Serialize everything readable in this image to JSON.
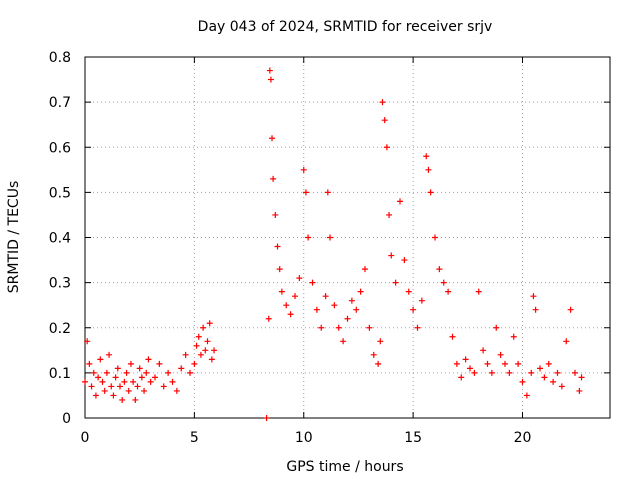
{
  "chart_data": {
    "type": "scatter",
    "title": "Day 043 of 2024, SRMTID for receiver srjv",
    "xlabel": "GPS time / hours",
    "ylabel": "SRMTID / TECUs",
    "xlim": [
      0,
      24
    ],
    "ylim": [
      0,
      0.8
    ],
    "xticks": [
      0,
      5,
      10,
      15,
      20
    ],
    "yticks": [
      0,
      0.1,
      0.2,
      0.3,
      0.4,
      0.5,
      0.6,
      0.7,
      0.8
    ],
    "grid": true,
    "marker": "+",
    "series": [
      {
        "name": "SRMTID",
        "color": "#ff0000",
        "points": [
          [
            0.0,
            0.08
          ],
          [
            0.1,
            0.17
          ],
          [
            0.2,
            0.12
          ],
          [
            0.3,
            0.07
          ],
          [
            0.4,
            0.1
          ],
          [
            0.5,
            0.05
          ],
          [
            0.6,
            0.09
          ],
          [
            0.7,
            0.13
          ],
          [
            0.8,
            0.08
          ],
          [
            0.9,
            0.06
          ],
          [
            1.0,
            0.1
          ],
          [
            1.1,
            0.14
          ],
          [
            1.2,
            0.07
          ],
          [
            1.3,
            0.05
          ],
          [
            1.4,
            0.09
          ],
          [
            1.5,
            0.11
          ],
          [
            1.6,
            0.07
          ],
          [
            1.7,
            0.04
          ],
          [
            1.8,
            0.08
          ],
          [
            1.9,
            0.1
          ],
          [
            2.0,
            0.06
          ],
          [
            2.1,
            0.12
          ],
          [
            2.2,
            0.08
          ],
          [
            2.3,
            0.04
          ],
          [
            2.4,
            0.07
          ],
          [
            2.5,
            0.11
          ],
          [
            2.6,
            0.09
          ],
          [
            2.7,
            0.06
          ],
          [
            2.8,
            0.1
          ],
          [
            2.9,
            0.13
          ],
          [
            3.0,
            0.08
          ],
          [
            3.2,
            0.09
          ],
          [
            3.4,
            0.12
          ],
          [
            3.6,
            0.07
          ],
          [
            3.8,
            0.1
          ],
          [
            4.0,
            0.08
          ],
          [
            4.2,
            0.06
          ],
          [
            4.4,
            0.11
          ],
          [
            4.6,
            0.14
          ],
          [
            4.8,
            0.1
          ],
          [
            5.0,
            0.12
          ],
          [
            5.1,
            0.16
          ],
          [
            5.2,
            0.18
          ],
          [
            5.3,
            0.14
          ],
          [
            5.4,
            0.2
          ],
          [
            5.5,
            0.15
          ],
          [
            5.6,
            0.17
          ],
          [
            5.7,
            0.21
          ],
          [
            5.8,
            0.13
          ],
          [
            5.9,
            0.15
          ],
          [
            8.3,
            0.0
          ],
          [
            8.4,
            0.22
          ],
          [
            8.45,
            0.77
          ],
          [
            8.5,
            0.75
          ],
          [
            8.55,
            0.62
          ],
          [
            8.6,
            0.53
          ],
          [
            8.7,
            0.45
          ],
          [
            8.8,
            0.38
          ],
          [
            8.9,
            0.33
          ],
          [
            9.0,
            0.28
          ],
          [
            9.2,
            0.25
          ],
          [
            9.4,
            0.23
          ],
          [
            9.6,
            0.27
          ],
          [
            9.8,
            0.31
          ],
          [
            10.0,
            0.55
          ],
          [
            10.1,
            0.5
          ],
          [
            10.2,
            0.4
          ],
          [
            10.4,
            0.3
          ],
          [
            10.6,
            0.24
          ],
          [
            10.8,
            0.2
          ],
          [
            11.0,
            0.27
          ],
          [
            11.1,
            0.5
          ],
          [
            11.2,
            0.4
          ],
          [
            11.4,
            0.25
          ],
          [
            11.6,
            0.2
          ],
          [
            11.8,
            0.17
          ],
          [
            12.0,
            0.22
          ],
          [
            12.2,
            0.26
          ],
          [
            12.4,
            0.24
          ],
          [
            12.6,
            0.28
          ],
          [
            12.8,
            0.33
          ],
          [
            13.0,
            0.2
          ],
          [
            13.2,
            0.14
          ],
          [
            13.4,
            0.12
          ],
          [
            13.5,
            0.17
          ],
          [
            13.6,
            0.7
          ],
          [
            13.7,
            0.66
          ],
          [
            13.8,
            0.6
          ],
          [
            13.9,
            0.45
          ],
          [
            14.0,
            0.36
          ],
          [
            14.2,
            0.3
          ],
          [
            14.4,
            0.48
          ],
          [
            14.6,
            0.35
          ],
          [
            14.8,
            0.28
          ],
          [
            15.0,
            0.24
          ],
          [
            15.2,
            0.2
          ],
          [
            15.4,
            0.26
          ],
          [
            15.6,
            0.58
          ],
          [
            15.7,
            0.55
          ],
          [
            15.8,
            0.5
          ],
          [
            16.0,
            0.4
          ],
          [
            16.2,
            0.33
          ],
          [
            16.4,
            0.3
          ],
          [
            16.6,
            0.28
          ],
          [
            16.8,
            0.18
          ],
          [
            17.0,
            0.12
          ],
          [
            17.2,
            0.09
          ],
          [
            17.4,
            0.13
          ],
          [
            17.6,
            0.11
          ],
          [
            17.8,
            0.1
          ],
          [
            18.0,
            0.28
          ],
          [
            18.2,
            0.15
          ],
          [
            18.4,
            0.12
          ],
          [
            18.6,
            0.1
          ],
          [
            18.8,
            0.2
          ],
          [
            19.0,
            0.14
          ],
          [
            19.2,
            0.12
          ],
          [
            19.4,
            0.1
          ],
          [
            19.6,
            0.18
          ],
          [
            19.8,
            0.12
          ],
          [
            20.0,
            0.08
          ],
          [
            20.2,
            0.05
          ],
          [
            20.4,
            0.1
          ],
          [
            20.5,
            0.27
          ],
          [
            20.6,
            0.24
          ],
          [
            20.8,
            0.11
          ],
          [
            21.0,
            0.09
          ],
          [
            21.2,
            0.12
          ],
          [
            21.4,
            0.08
          ],
          [
            21.6,
            0.1
          ],
          [
            21.8,
            0.07
          ],
          [
            22.0,
            0.17
          ],
          [
            22.2,
            0.24
          ],
          [
            22.4,
            0.1
          ],
          [
            22.6,
            0.06
          ],
          [
            22.7,
            0.09
          ]
        ]
      }
    ]
  }
}
